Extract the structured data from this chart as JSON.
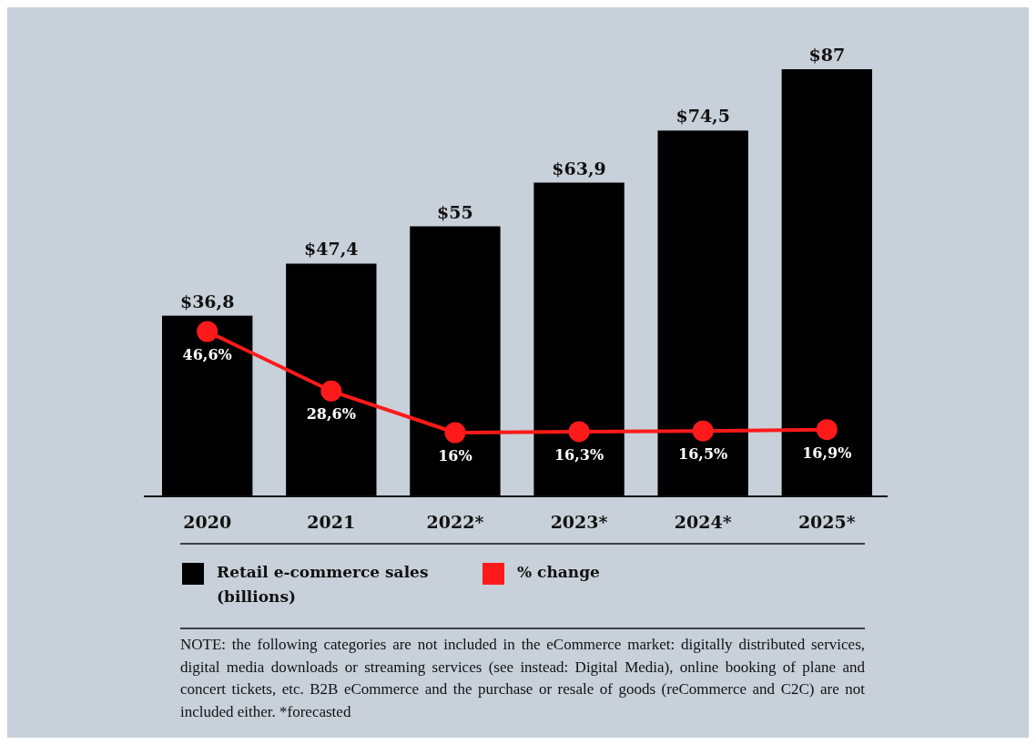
{
  "chart_data": {
    "type": "bar",
    "categories": [
      "2020",
      "2021",
      "2022*",
      "2023*",
      "2024*",
      "2025*"
    ],
    "series": [
      {
        "name": "Retail e-commerce sales (billions)",
        "color": "#000000",
        "values": [
          36.8,
          47.4,
          55,
          63.9,
          74.5,
          87
        ],
        "value_labels": [
          "$36,8",
          "$47,4",
          "$55",
          "$63,9",
          "$74,5",
          "$87"
        ]
      },
      {
        "name": "% change",
        "type": "line",
        "axis": "y2",
        "color": "#ff1a1a",
        "marker": "circle",
        "values": [
          46.6,
          28.6,
          16,
          16.3,
          16.5,
          16.9
        ],
        "value_labels": [
          "46,6%",
          "28,6%",
          "16%",
          "16,3%",
          "16,5%",
          "16,9%"
        ]
      }
    ],
    "tick_labels": "x",
    "legend": "bottom",
    "annotations": [
      "NOTE: the following categories are not included in the eCommerce market: digitally distributed services, digital media downloads or streaming services (see instead: Digital Media), online booking of plane and concert tickets, etc. B2B eCommerce and the purchase or resale of goods (reCommerce and C2C) are not included either. *forecasted"
    ]
  }
}
